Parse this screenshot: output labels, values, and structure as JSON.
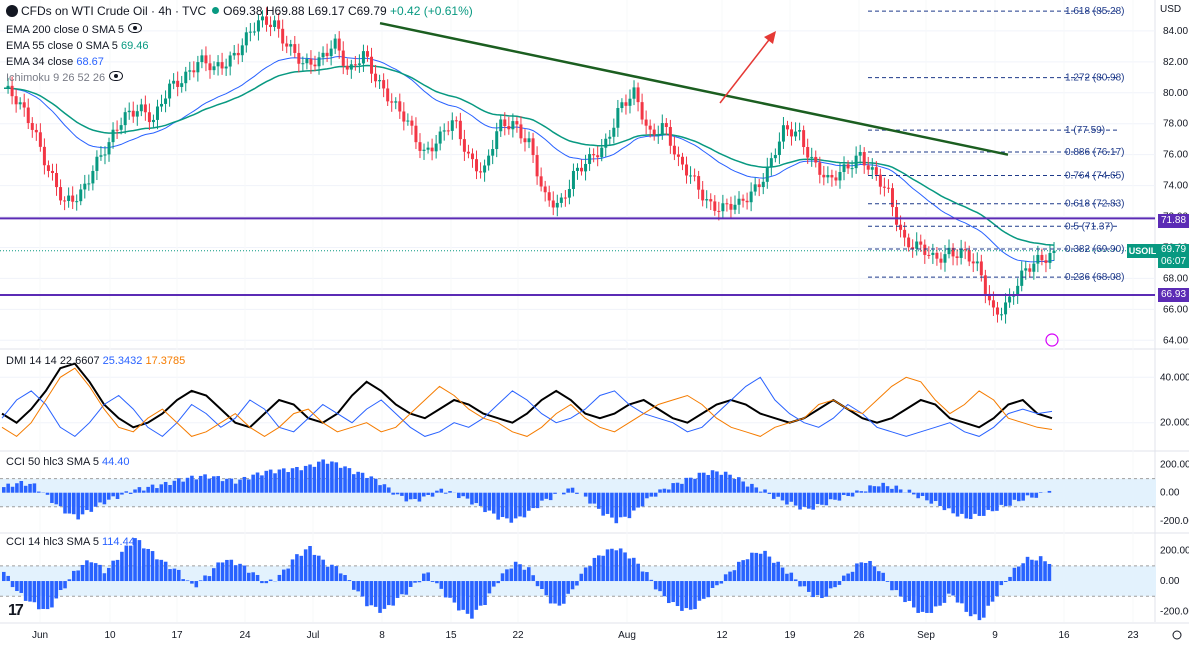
{
  "header": {
    "title": "CFDs on WTI Crude Oil · 4h · TVC",
    "open": "O69.38",
    "high": "H69.88",
    "low": "L69.17",
    "close": "C69.79",
    "change": "+0.42 (+0.61%)",
    "currency": "USD"
  },
  "indicators": {
    "ema200": {
      "label": "EMA 200 close 0 SMA 5"
    },
    "ema55": {
      "label": "EMA 55 close 0 SMA 5",
      "value": "69.46"
    },
    "ema34": {
      "label": "EMA 34 close",
      "value": "68.67"
    },
    "ichimoku": {
      "label": "Ichimoku 9 26 52 26"
    },
    "dmi": {
      "label": "DMI 14 14",
      "adx": "22.6607",
      "plus": "25.3432",
      "minus": "17.3785"
    },
    "cci50": {
      "label": "CCI 50 hlc3 SMA 5",
      "value": "44.40"
    },
    "cci14": {
      "label": "CCI 14 hlc3 SMA 5",
      "value": "114.44"
    }
  },
  "price_tags": {
    "symbol": "USOIL",
    "last": "69.79",
    "countdown": "06:07",
    "resistance": "71.88",
    "support": "66.93"
  },
  "colors": {
    "up": "#089981",
    "down": "#f23645",
    "ema55": "#089981",
    "ema34": "#2962ff",
    "hline": "#5b2bb5",
    "trend": "#1b5e20",
    "arrow": "#e53935",
    "dmi_adx": "#000000",
    "dmi_plus": "#2962ff",
    "dmi_minus": "#f57c00",
    "cci": "#2962ff"
  },
  "chart_data": [
    {
      "type": "candlestick",
      "title": "CFDs on WTI Crude Oil · 4h · TVC",
      "ylim": [
        63.5,
        86
      ],
      "y_ticks": [
        "84.00",
        "82.00",
        "80.00",
        "78.00",
        "76.00",
        "74.00",
        "72.00",
        "70.00",
        "68.00",
        "66.00",
        "64.00"
      ],
      "x_labels": [
        "Jun",
        "10",
        "17",
        "24",
        "Jul",
        "8",
        "15",
        "22",
        "Aug",
        "12",
        "19",
        "26",
        "Sep",
        "9",
        "16",
        "23"
      ],
      "key_points": [
        80.3,
        79.1,
        77.8,
        75.0,
        72.6,
        73.4,
        75.4,
        76.5,
        78.5,
        79.3,
        78.0,
        80.3,
        81.2,
        82.0,
        81.4,
        82.3,
        83.3,
        84.4,
        84.7,
        83.0,
        81.5,
        82.2,
        83.5,
        81.0,
        82.6,
        80.8,
        79.0,
        77.9,
        76.3,
        76.9,
        78.1,
        76.0,
        74.8,
        77.7,
        78.2,
        76.8,
        73.0,
        72.8,
        74.9,
        75.4,
        76.5,
        79.2,
        79.8,
        77.2,
        78.2,
        75.3,
        74.2,
        73.0,
        72.5,
        72.6,
        73.9,
        75.2,
        77.4,
        77.5,
        75.5,
        74.0,
        75.1,
        76.2,
        74.5,
        73.4,
        70.6,
        69.9,
        69.1,
        69.9,
        69.6,
        68.4,
        65.9,
        66.5,
        68.2,
        69.4,
        69.79
      ],
      "lines": {
        "resistance": 71.88,
        "support": 66.93,
        "last": 69.79
      },
      "fib_levels": [
        {
          "label": "1.618 (85.28)",
          "value": 85.28
        },
        {
          "label": "1.272 (80.98)",
          "value": 80.98
        },
        {
          "label": "1 (77.59)",
          "value": 77.59
        },
        {
          "label": "0.886 (76.17)",
          "value": 76.17
        },
        {
          "label": "0.764 (74.65)",
          "value": 74.65
        },
        {
          "label": "0.618 (72.83)",
          "value": 72.83
        },
        {
          "label": "0.5 (71.37)",
          "value": 71.37
        },
        {
          "label": "0.382 (69.90)",
          "value": 69.9
        },
        {
          "label": "0.236 (68.08)",
          "value": 68.08
        }
      ],
      "trendline": {
        "from": 84.5,
        "to": 76.0
      }
    },
    {
      "type": "line",
      "title": "DMI 14 14",
      "ylim": [
        8,
        52
      ],
      "y_ticks": [
        "40.000",
        "20.000"
      ],
      "series": [
        {
          "name": "ADX",
          "values": [
            24,
            20,
            26,
            34,
            44,
            46,
            38,
            28,
            22,
            18,
            20,
            24,
            30,
            34,
            32,
            26,
            20,
            18,
            24,
            30,
            28,
            22,
            20,
            24,
            32,
            38,
            34,
            28,
            24,
            22,
            26,
            30,
            28,
            24,
            22,
            20,
            24,
            30,
            34,
            30,
            24,
            22,
            24,
            28,
            30,
            26,
            22,
            20,
            24,
            28,
            30,
            28,
            24,
            22,
            20,
            22,
            26,
            30,
            26,
            22,
            20,
            22,
            26,
            30,
            28,
            22,
            20,
            18,
            22,
            28,
            30,
            24,
            22
          ]
        },
        {
          "name": "+DI",
          "values": [
            22,
            30,
            34,
            28,
            18,
            14,
            20,
            28,
            32,
            26,
            18,
            14,
            20,
            28,
            24,
            18,
            22,
            30,
            26,
            18,
            16,
            22,
            28,
            24,
            20,
            26,
            30,
            24,
            18,
            14,
            16,
            20,
            18,
            22,
            28,
            34,
            30,
            24,
            20,
            22,
            26,
            32,
            34,
            28,
            24,
            22,
            20,
            16,
            18,
            24,
            30,
            36,
            40,
            30,
            24,
            20,
            18,
            22,
            28,
            24,
            18,
            16,
            14,
            16,
            18,
            20,
            16,
            14,
            18,
            24,
            26,
            24,
            25
          ]
        },
        {
          "name": "-DI",
          "values": [
            18,
            14,
            20,
            30,
            40,
            44,
            36,
            26,
            18,
            16,
            22,
            26,
            20,
            14,
            16,
            20,
            24,
            18,
            14,
            18,
            24,
            26,
            20,
            16,
            18,
            20,
            16,
            18,
            24,
            30,
            36,
            32,
            26,
            22,
            20,
            16,
            14,
            18,
            24,
            28,
            22,
            18,
            16,
            20,
            24,
            28,
            30,
            32,
            28,
            22,
            18,
            16,
            14,
            18,
            20,
            22,
            28,
            30,
            26,
            24,
            30,
            36,
            40,
            38,
            30,
            24,
            28,
            34,
            30,
            22,
            20,
            18,
            17
          ]
        }
      ]
    },
    {
      "type": "bar",
      "title": "CCI 50 hlc3 SMA 5",
      "ylim": [
        -280,
        290
      ],
      "y_ticks": [
        "200.00",
        "0.00",
        "-200.00"
      ],
      "values": [
        40,
        70,
        60,
        -30,
        -120,
        -180,
        -120,
        -60,
        -20,
        20,
        40,
        60,
        90,
        110,
        120,
        100,
        80,
        120,
        150,
        160,
        170,
        190,
        230,
        200,
        150,
        120,
        60,
        -20,
        -60,
        -30,
        20,
        -10,
        -60,
        -120,
        -180,
        -200,
        -140,
        -60,
        -10,
        30,
        -40,
        -140,
        -200,
        -160,
        -60,
        10,
        60,
        100,
        140,
        150,
        120,
        60,
        20,
        -40,
        -80,
        -120,
        -90,
        -50,
        -20,
        20,
        60,
        40,
        10,
        -40,
        -80,
        -140,
        -180,
        -160,
        -120,
        -80,
        -40,
        -20,
        44
      ]
    },
    {
      "type": "bar",
      "title": "CCI 14 hlc3 SMA 5",
      "ylim": [
        -270,
        310
      ],
      "y_ticks": [
        "200.00",
        "0.00",
        "-200.00"
      ],
      "values": [
        60,
        -80,
        -150,
        -200,
        -60,
        80,
        140,
        60,
        180,
        280,
        200,
        120,
        60,
        -40,
        40,
        140,
        120,
        60,
        -20,
        40,
        160,
        220,
        120,
        80,
        -40,
        -160,
        -200,
        -120,
        -40,
        60,
        -60,
        -160,
        -240,
        -140,
        20,
        120,
        80,
        -80,
        -180,
        -60,
        100,
        180,
        220,
        160,
        60,
        -80,
        -160,
        -200,
        -120,
        -20,
        80,
        160,
        200,
        120,
        40,
        -60,
        -120,
        -40,
        60,
        140,
        80,
        -60,
        -140,
        -220,
        -180,
        -80,
        -200,
        -260,
        -100,
        40,
        140,
        150,
        114
      ]
    }
  ]
}
